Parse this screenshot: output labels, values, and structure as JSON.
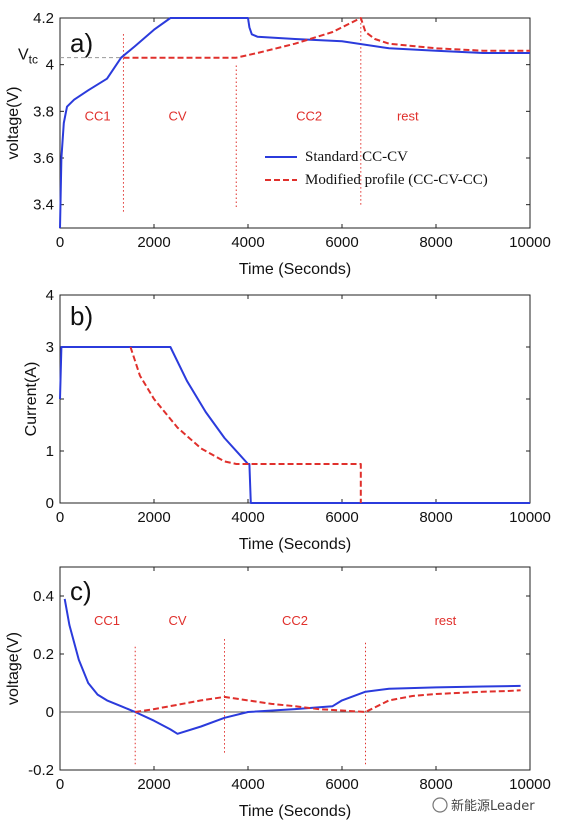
{
  "colors": {
    "standard": "#2b3bdc",
    "modified": "#e0302c",
    "phase_label": "#e0302c",
    "phase_line": "#e0302c",
    "ref": "#999999"
  },
  "chart_data": [
    {
      "type": "line",
      "panel_label": "a)",
      "xlabel": "Time (Seconds)",
      "ylabel": "voltage(V)",
      "xlim": [
        0,
        10000
      ],
      "ylim": [
        3.3,
        4.2
      ],
      "x_ticks": [
        "0",
        "2000",
        "4000",
        "6000",
        "8000",
        "10000"
      ],
      "y_ticks": [
        "3.4",
        "3.6",
        "3.8",
        "4",
        "4.2"
      ],
      "grid": false,
      "ref_line": {
        "label": "V",
        "label_sub": "tc",
        "y": 4.03,
        "x_end": 1300
      },
      "phase_labels": [
        {
          "text": "CC1",
          "x": 800,
          "y": 3.76
        },
        {
          "text": "CV",
          "x": 2500,
          "y": 3.76
        },
        {
          "text": "CC2",
          "x": 5300,
          "y": 3.76
        },
        {
          "text": "rest",
          "x": 7400,
          "y": 3.76
        }
      ],
      "phase_lines": [
        {
          "x": 1350,
          "y_range": [
            3.37,
            4.14
          ]
        },
        {
          "x": 3750,
          "y_range": [
            3.39,
            4.0
          ]
        },
        {
          "x": 6400,
          "y_range": [
            3.4,
            4.2
          ]
        }
      ],
      "legend": {
        "placement": "center-right",
        "entries": [
          "Standard CC-CV",
          "Modified profile (CC-CV-CC)"
        ]
      },
      "series": [
        {
          "name": "Standard CC-CV",
          "style": "solid",
          "x": [
            0,
            30,
            80,
            150,
            300,
            600,
            1000,
            1300,
            1600,
            2000,
            2350,
            2800,
            3500,
            4000,
            4030,
            4080,
            4200,
            5000,
            6000,
            7000,
            8000,
            9000,
            10000
          ],
          "y": [
            3.3,
            3.6,
            3.75,
            3.82,
            3.85,
            3.89,
            3.94,
            4.03,
            4.08,
            4.15,
            4.2,
            4.2,
            4.2,
            4.2,
            4.16,
            4.13,
            4.12,
            4.11,
            4.1,
            4.07,
            4.06,
            4.05,
            4.05
          ]
        },
        {
          "name": "Modified profile (CC-CV-CC)",
          "style": "dashed",
          "x": [
            1350,
            2000,
            3000,
            3750,
            4200,
            5000,
            5800,
            6400,
            6500,
            6700,
            7000,
            8000,
            9000,
            10000
          ],
          "y": [
            4.03,
            4.03,
            4.03,
            4.03,
            4.05,
            4.09,
            4.14,
            4.2,
            4.14,
            4.11,
            4.09,
            4.07,
            4.06,
            4.06
          ]
        }
      ]
    },
    {
      "type": "line",
      "panel_label": "b)",
      "xlabel": "Time (Seconds)",
      "ylabel": "Current(A)",
      "xlim": [
        0,
        10000
      ],
      "ylim": [
        0,
        4
      ],
      "x_ticks": [
        "0",
        "2000",
        "4000",
        "6000",
        "8000",
        "10000"
      ],
      "y_ticks": [
        "0",
        "1",
        "2",
        "3",
        "4"
      ],
      "grid": false,
      "series": [
        {
          "name": "Standard CC-CV",
          "style": "solid",
          "x": [
            0,
            30,
            500,
            1500,
            2350,
            2700,
            3100,
            3500,
            3800,
            4000,
            4030,
            4060,
            10000
          ],
          "y": [
            2.0,
            3.0,
            3.0,
            3.0,
            3.0,
            2.35,
            1.75,
            1.25,
            0.95,
            0.75,
            0.75,
            0.0,
            0.0
          ]
        },
        {
          "name": "Modified profile (CC-CV-CC)",
          "style": "dashed",
          "x": [
            1500,
            1700,
            2000,
            2500,
            3000,
            3500,
            3750,
            4500,
            5500,
            6400,
            6400
          ],
          "y": [
            3.0,
            2.45,
            2.0,
            1.45,
            1.05,
            0.8,
            0.75,
            0.75,
            0.75,
            0.75,
            0.0
          ]
        }
      ]
    },
    {
      "type": "line",
      "panel_label": "c)",
      "xlabel": "Time (Seconds)",
      "ylabel": "voltage(V)",
      "xlim": [
        0,
        10000
      ],
      "ylim": [
        -0.2,
        0.5
      ],
      "x_ticks": [
        "0",
        "2000",
        "4000",
        "6000",
        "8000",
        "10000"
      ],
      "y_ticks": [
        "-0.2",
        "0",
        "0.2",
        "0.4"
      ],
      "grid": false,
      "zero_line": true,
      "phase_labels": [
        {
          "text": "CC1",
          "x": 1000,
          "y": 0.3
        },
        {
          "text": "CV",
          "x": 2500,
          "y": 0.3
        },
        {
          "text": "CC2",
          "x": 5000,
          "y": 0.3
        },
        {
          "text": "rest",
          "x": 8200,
          "y": 0.3
        }
      ],
      "phase_lines": [
        {
          "x": 1600,
          "y_range": [
            -0.18,
            0.23
          ]
        },
        {
          "x": 3500,
          "y_range": [
            -0.14,
            0.26
          ]
        },
        {
          "x": 6500,
          "y_range": [
            -0.18,
            0.24
          ]
        }
      ],
      "series": [
        {
          "name": "Standard CC-CV",
          "style": "solid",
          "x": [
            100,
            200,
            400,
            600,
            800,
            1000,
            1300,
            1600,
            2000,
            2350,
            2500,
            3000,
            3500,
            4000,
            5000,
            5800,
            6000,
            6500,
            7000,
            8000,
            9000,
            9800
          ],
          "y": [
            0.39,
            0.3,
            0.18,
            0.1,
            0.06,
            0.04,
            0.02,
            0.0,
            -0.03,
            -0.06,
            -0.075,
            -0.05,
            -0.02,
            0.0,
            0.01,
            0.02,
            0.04,
            0.07,
            0.08,
            0.085,
            0.088,
            0.09
          ]
        },
        {
          "name": "Modified profile (CC-CV-CC)",
          "style": "dashed",
          "x": [
            1600,
            2000,
            2500,
            3000,
            3500,
            4000,
            4500,
            5000,
            5500,
            6000,
            6500,
            7000,
            7500,
            8000,
            8500,
            9000,
            9500,
            9800
          ],
          "y": [
            0.0,
            0.01,
            0.025,
            0.04,
            0.052,
            0.04,
            0.028,
            0.02,
            0.01,
            0.005,
            0.0,
            0.04,
            0.055,
            0.062,
            0.066,
            0.07,
            0.072,
            0.075
          ]
        }
      ]
    }
  ],
  "watermark": "新能源Leader"
}
